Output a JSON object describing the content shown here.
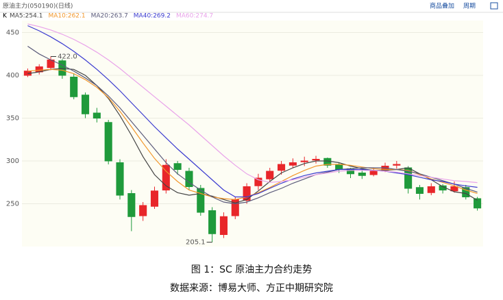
{
  "header": {
    "title": "原油主力(050190)(日线)",
    "links": [
      "商品叠加",
      "周期"
    ]
  },
  "chart_data": {
    "type": "candlestick",
    "legend_prefix": "K",
    "open": [
      400,
      404,
      409,
      417,
      398,
      377,
      356,
      345,
      298,
      262,
      236,
      247,
      266,
      297,
      288,
      268,
      242,
      214,
      236,
      254,
      271,
      279,
      289,
      295,
      299,
      301,
      303,
      296,
      291,
      286,
      284,
      289,
      295,
      292,
      269,
      263,
      271,
      265,
      269,
      256
    ],
    "high": [
      408,
      413,
      422,
      419,
      402,
      380,
      362,
      348,
      302,
      266,
      252,
      270,
      302,
      300,
      292,
      272,
      246,
      240,
      258,
      274,
      285,
      292,
      300,
      303,
      305,
      306,
      304,
      298,
      292,
      289,
      292,
      298,
      300,
      294,
      272,
      274,
      273,
      276,
      272,
      258
    ],
    "low": [
      398,
      401,
      406,
      396,
      372,
      350,
      345,
      296,
      255,
      218,
      230,
      244,
      262,
      284,
      266,
      236,
      205.1,
      210,
      232,
      250,
      266,
      276,
      284,
      292,
      294,
      297,
      292,
      286,
      280,
      279,
      282,
      287,
      291,
      262,
      255,
      260,
      262,
      263,
      255,
      242
    ],
    "close": [
      405,
      410,
      418,
      400,
      375,
      355,
      350,
      300,
      260,
      235,
      248,
      265,
      295,
      290,
      270,
      240,
      215,
      235,
      255,
      270,
      280,
      288,
      296,
      298,
      300,
      302,
      295,
      290,
      285,
      283,
      288,
      294,
      296,
      268,
      262,
      270,
      266,
      270,
      258,
      245
    ],
    "up_color": "#e8262a",
    "down_color": "#1f9a3b",
    "series": [
      {
        "name": "MA5:254.1",
        "color": "#444444",
        "values": [
          402,
          404,
          407,
          408,
          407,
          400,
          388,
          373,
          353,
          330,
          305,
          284,
          271,
          263,
          260,
          262,
          259,
          255,
          251,
          255,
          265,
          276,
          286,
          292,
          297,
          300,
          300,
          298,
          294,
          291,
          289,
          289,
          290,
          292,
          285,
          278,
          270,
          264,
          262,
          254.1
        ]
      },
      {
        "name": "MA10:262.1",
        "color": "#f2962a",
        "values": [
          405,
          406,
          407,
          406,
          402,
          395,
          386,
          374,
          358,
          340,
          321,
          303,
          288,
          276,
          266,
          262,
          258,
          256,
          255,
          258,
          263,
          269,
          276,
          283,
          289,
          294,
          296,
          296,
          295,
          293,
          291,
          290,
          290,
          289,
          284,
          279,
          275,
          271,
          266,
          262.1
        ]
      },
      {
        "name": "MA20:263.7",
        "color": "#5a5a7a",
        "values": [
          434,
          425,
          418,
          412,
          405,
          397,
          388,
          376,
          362,
          346,
          330,
          314,
          298,
          285,
          275,
          266,
          258,
          252,
          250,
          252,
          257,
          263,
          268,
          274,
          279,
          284,
          287,
          290,
          291,
          292,
          292,
          292,
          290,
          288,
          285,
          281,
          277,
          273,
          268,
          263.7
        ]
      },
      {
        "name": "MA40:269.2",
        "color": "#3a3ad0",
        "values": [
          458,
          452,
          445,
          437,
          428,
          418,
          407,
          395,
          382,
          368,
          354,
          340,
          327,
          314,
          302,
          290,
          278,
          266,
          258,
          258,
          262,
          268,
          274,
          279,
          283,
          286,
          288,
          290,
          290,
          290,
          289,
          288,
          286,
          284,
          281,
          278,
          276,
          273,
          271,
          269.2
        ]
      },
      {
        "name": "MA60:274.7",
        "color": "#e9a3ea",
        "values": [
          460,
          457,
          453,
          448,
          442,
          435,
          427,
          418,
          408,
          397,
          386,
          375,
          364,
          353,
          342,
          330,
          318,
          306,
          295,
          285,
          278,
          275,
          276,
          278,
          281,
          284,
          286,
          288,
          289,
          289,
          289,
          288,
          287,
          285,
          283,
          281,
          279,
          277,
          276,
          274.7
        ]
      }
    ],
    "annotations": [
      "422.0",
      "205.1"
    ],
    "ylim": [
      200,
      464
    ],
    "yticks": [
      250,
      300,
      350,
      400,
      450
    ],
    "grid": true
  },
  "caption": [
    "图 1：SC 原油主力合约走势",
    "数据来源：博易大师、方正中期研究院"
  ]
}
